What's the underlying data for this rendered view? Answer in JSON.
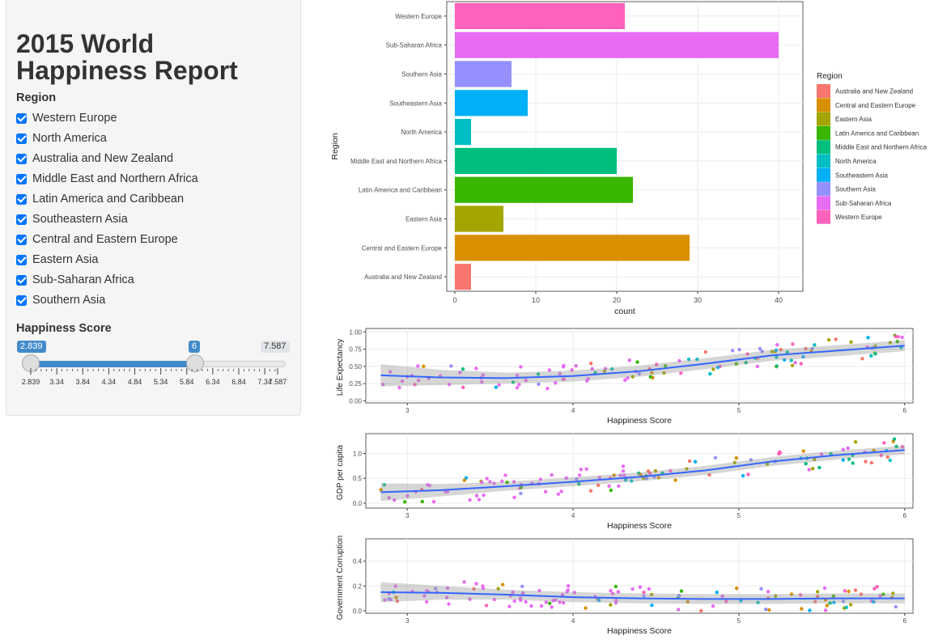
{
  "sidebar": {
    "title": "2015 World Happiness Report",
    "region_label": "Region",
    "regions": [
      {
        "label": "Western Europe",
        "checked": true
      },
      {
        "label": "North America",
        "checked": true
      },
      {
        "label": "Australia and New Zealand",
        "checked": true
      },
      {
        "label": "Middle East and Northern Africa",
        "checked": true
      },
      {
        "label": "Latin America and Caribbean",
        "checked": true
      },
      {
        "label": "Southeastern Asia",
        "checked": true
      },
      {
        "label": "Central and Eastern Europe",
        "checked": true
      },
      {
        "label": "Eastern Asia",
        "checked": true
      },
      {
        "label": "Sub-Saharan Africa",
        "checked": true
      },
      {
        "label": "Southern Asia",
        "checked": true
      }
    ],
    "score_label": "Happiness Score",
    "slider": {
      "min": 2.839,
      "max": 7.587,
      "from": 2.839,
      "to": 6,
      "from_label": "2.839",
      "to_label": "6",
      "max_label": "7.587",
      "ticks": [
        "2.839",
        "3.34",
        "3.84",
        "4.34",
        "4.84",
        "5.34",
        "5.84",
        "6.34",
        "6.84",
        "7.34",
        "7.587"
      ],
      "tick_values": [
        2.839,
        3.34,
        3.84,
        4.34,
        4.84,
        5.34,
        5.84,
        6.34,
        6.84,
        7.34,
        7.587
      ],
      "accent": "#428bca"
    }
  },
  "chart_data": [
    {
      "type": "bar",
      "orientation": "horizontal",
      "categories": [
        "Australia and New Zealand",
        "Central and Eastern Europe",
        "Eastern Asia",
        "Latin America and Caribbean",
        "Middle East and Northern Africa",
        "North America",
        "Southeastern Asia",
        "Southern Asia",
        "Sub-Saharan Africa",
        "Western Europe"
      ],
      "values": [
        2,
        29,
        6,
        22,
        20,
        2,
        9,
        7,
        40,
        21
      ],
      "colors": [
        "#F8766D",
        "#D89000",
        "#A3A500",
        "#39B600",
        "#00BF7D",
        "#00BFC4",
        "#00B0F6",
        "#9590FF",
        "#E76BF3",
        "#FF62BC"
      ],
      "xlabel": "count",
      "ylabel": "Region",
      "xlim": [
        0,
        42
      ],
      "xticks": [
        0,
        10,
        20,
        30,
        40
      ],
      "legend_title": "Region",
      "legend_position": "right",
      "legend_entries": [
        "Australia and New Zealand",
        "Central and Eastern Europe",
        "Eastern Asia",
        "Latin America and Caribbean",
        "Middle East and Northern Africa",
        "North America",
        "Southeastern Asia",
        "Southern Asia",
        "Sub-Saharan Africa",
        "Western Europe"
      ]
    },
    {
      "type": "scatter",
      "xlabel": "Happiness Score",
      "ylabel": "Life Expectancy",
      "xlim": [
        2.75,
        6.05
      ],
      "ylim": [
        -0.03,
        1.05
      ],
      "xticks": [
        3,
        4,
        5,
        6
      ],
      "yticks": [
        0,
        0.25,
        0.5,
        0.75,
        1
      ],
      "ytick_labels": [
        "0.00",
        "0.25",
        "0.50",
        "0.75",
        "1.00"
      ],
      "trend_x": [
        2.84,
        3.2,
        3.6,
        4.0,
        4.4,
        4.8,
        5.2,
        5.6,
        6.0
      ],
      "trend_y": [
        0.37,
        0.34,
        0.33,
        0.36,
        0.43,
        0.54,
        0.66,
        0.73,
        0.8
      ],
      "band": 0.08
    },
    {
      "type": "scatter",
      "xlabel": "Happiness Score",
      "ylabel": "GDP per capita",
      "xlim": [
        2.75,
        6.05
      ],
      "ylim": [
        -0.1,
        1.4
      ],
      "xticks": [
        3,
        4,
        5,
        6
      ],
      "yticks": [
        0,
        0.5,
        1
      ],
      "ytick_labels": [
        "0.0",
        "0.5",
        "1.0"
      ],
      "trend_x": [
        2.84,
        3.2,
        3.6,
        4.0,
        4.4,
        4.8,
        5.2,
        5.6,
        6.0
      ],
      "trend_y": [
        0.22,
        0.26,
        0.34,
        0.43,
        0.53,
        0.66,
        0.84,
        0.97,
        1.07
      ],
      "band": 0.09
    },
    {
      "type": "scatter",
      "xlabel": "Happiness Score",
      "ylabel": "Government Corruption",
      "xlim": [
        2.75,
        6.05
      ],
      "ylim": [
        -0.02,
        0.58
      ],
      "xticks": [
        3,
        4,
        5,
        6
      ],
      "yticks": [
        0,
        0.2,
        0.4
      ],
      "ytick_labels": [
        "0.0",
        "0.2",
        "0.4"
      ],
      "trend_x": [
        2.84,
        3.2,
        3.6,
        4.0,
        4.4,
        4.8,
        5.2,
        5.6,
        6.0
      ],
      "trend_y": [
        0.15,
        0.145,
        0.13,
        0.11,
        0.1,
        0.095,
        0.095,
        0.1,
        0.1
      ],
      "band": 0.04
    }
  ]
}
